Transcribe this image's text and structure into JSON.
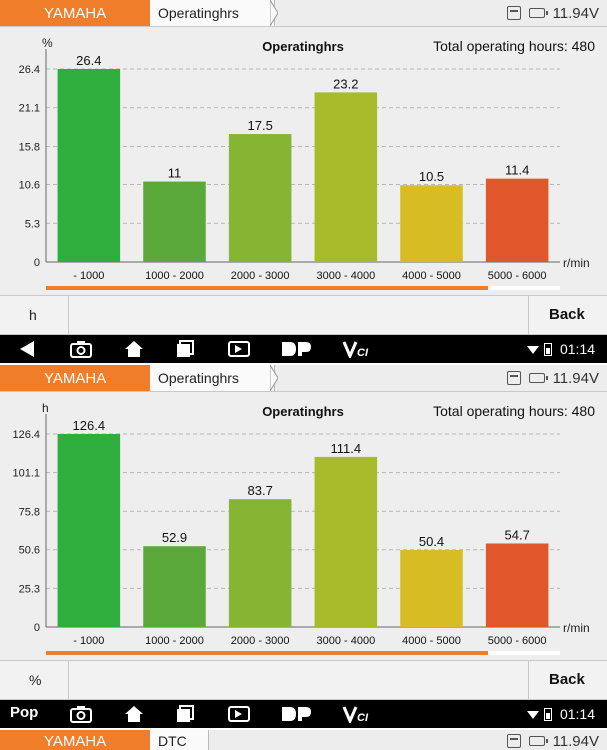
{
  "top": {
    "header": {
      "brand": "YAMAHA",
      "page_tab": "Operatinghrs",
      "voltage": "11.94V"
    },
    "chart_data": {
      "type": "bar",
      "title": "Operatinghrs",
      "summary": "Total operating hours: 480",
      "ylabel": "%",
      "xlabel": "r/min",
      "categories": [
        "- 1000",
        "1000 - 2000",
        "2000 - 3000",
        "3000 - 4000",
        "4000 - 5000",
        "5000 - 6000"
      ],
      "values": [
        26.4,
        11,
        17.5,
        23.2,
        10.5,
        11.4
      ],
      "value_labels": [
        "26.4",
        "11",
        "17.5",
        "23.2",
        "10.5",
        "11.4"
      ],
      "yticks": [
        "0",
        "5.3",
        "10.6",
        "15.8",
        "21.1",
        "26.4"
      ],
      "ylim": [
        0,
        26.4
      ],
      "colors": [
        "#2fae3e",
        "#5aa93a",
        "#85b532",
        "#a8bb2a",
        "#d7bd23",
        "#e0572b"
      ],
      "grid": true
    },
    "scroll_fraction": 0.86,
    "footer": {
      "toggle_label": "h",
      "back_label": "Back"
    },
    "navbar": {
      "time": "01:14"
    }
  },
  "bottom": {
    "header": {
      "brand": "YAMAHA",
      "page_tab": "Operatinghrs",
      "voltage": "11.94V"
    },
    "chart_data": {
      "type": "bar",
      "title": "Operatinghrs",
      "summary": "Total operating hours: 480",
      "ylabel": "h",
      "xlabel": "r/min",
      "categories": [
        "- 1000",
        "1000 - 2000",
        "2000 - 3000",
        "3000 - 4000",
        "4000 - 5000",
        "5000 - 6000"
      ],
      "values": [
        126.4,
        52.9,
        83.7,
        111.4,
        50.4,
        54.7
      ],
      "value_labels": [
        "126.4",
        "52.9",
        "83.7",
        "111.4",
        "50.4",
        "54.7"
      ],
      "yticks": [
        "0",
        "25.3",
        "50.6",
        "75.8",
        "101.1",
        "126.4"
      ],
      "ylim": [
        0,
        126.4
      ],
      "colors": [
        "#2fae3e",
        "#5aa93a",
        "#85b532",
        "#a8bb2a",
        "#d7bd23",
        "#e0572b"
      ],
      "grid": true
    },
    "scroll_fraction": 0.86,
    "footer": {
      "toggle_label": "%",
      "back_label": "Back"
    },
    "navbar": {
      "time": "01:14",
      "overlay_label": "Pop"
    }
  },
  "strip": {
    "brand": "YAMAHA",
    "page_tab": "DTC",
    "voltage": "11.94V"
  },
  "icons": {
    "nav": [
      "back-icon",
      "screenshot-icon",
      "home-icon",
      "recent-apps-icon",
      "vci-connect-icon",
      "dp-logo-icon",
      "vci-logo-icon",
      "wifi-icon",
      "battery-icon"
    ]
  }
}
